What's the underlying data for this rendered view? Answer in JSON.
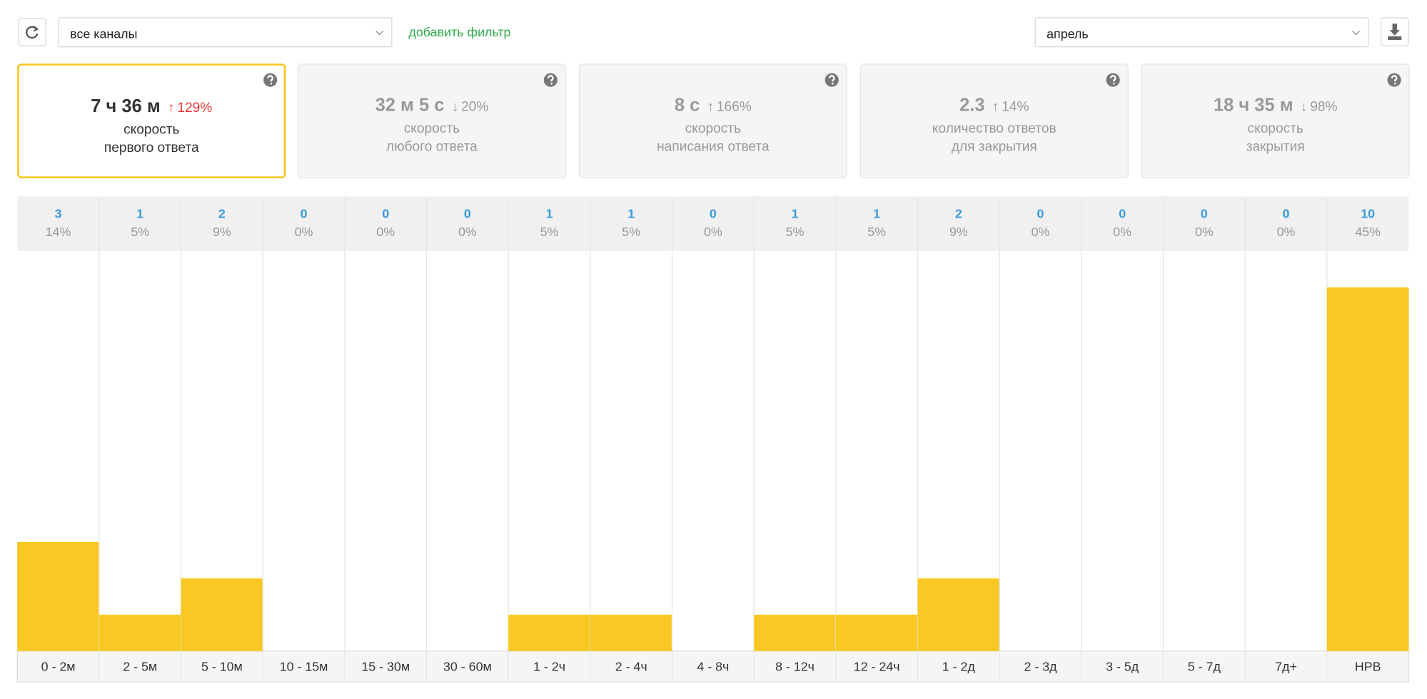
{
  "toolbar": {
    "channel_select": "все каналы",
    "add_filter": "добавить фильтр",
    "period_select": "апрель"
  },
  "cards": [
    {
      "value": "7 ч 36 м",
      "arrow": "↑",
      "change": "129%",
      "label": [
        "скорость",
        "первого ответа"
      ],
      "active": true
    },
    {
      "value": "32 м 5 с",
      "arrow": "↓",
      "change": "20%",
      "label": [
        "скорость",
        "любого ответа"
      ],
      "active": false
    },
    {
      "value": "8 с",
      "arrow": "↑",
      "change": "166%",
      "label": [
        "скорость",
        "написания ответа"
      ],
      "active": false
    },
    {
      "value": "2.3",
      "arrow": "↑",
      "change": "14%",
      "label": [
        "количество ответов",
        "для закрытия"
      ],
      "active": false
    },
    {
      "value": "18 ч 35 м",
      "arrow": "↓",
      "change": "98%",
      "label": [
        "скорость",
        "закрытия"
      ],
      "active": false
    }
  ],
  "chart_data": {
    "type": "bar",
    "categories": [
      "0 - 2м",
      "2 - 5м",
      "5 - 10м",
      "10 - 15м",
      "15 - 30м",
      "30 - 60м",
      "1 - 2ч",
      "2 - 4ч",
      "4 - 8ч",
      "8 - 12ч",
      "12 - 24ч",
      "1 - 2д",
      "2 - 3д",
      "3 - 5д",
      "5 - 7д",
      "7д+",
      "НРВ"
    ],
    "values": [
      3,
      1,
      2,
      0,
      0,
      0,
      1,
      1,
      0,
      1,
      1,
      2,
      0,
      0,
      0,
      0,
      10
    ],
    "share_labels": [
      "14%",
      "5%",
      "9%",
      "0%",
      "0%",
      "0%",
      "5%",
      "5%",
      "0%",
      "5%",
      "5%",
      "9%",
      "0%",
      "0%",
      "0%",
      "0%",
      "45%"
    ],
    "color": "#f9c823",
    "ylim": [
      0,
      11
    ]
  }
}
